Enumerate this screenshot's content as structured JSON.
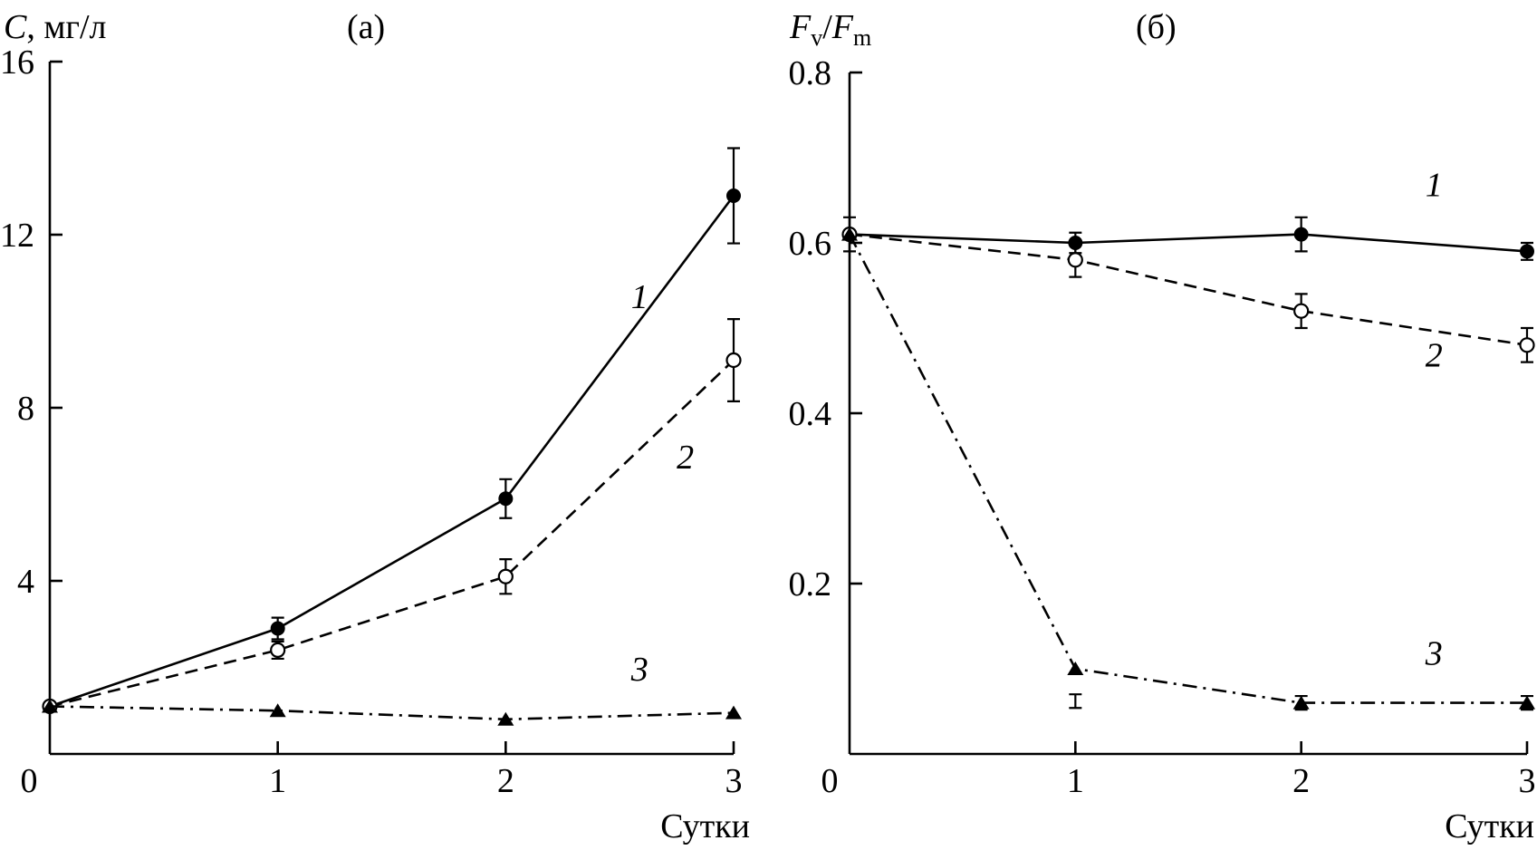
{
  "chart_data": [
    {
      "type": "line",
      "title": "(а)",
      "ylabel_var": "C",
      "ylabel_unit": ", мг/л",
      "xlabel": "Сутки",
      "x": [
        0,
        1,
        2,
        3
      ],
      "x_ticks": [
        "0",
        "1",
        "2",
        "3"
      ],
      "ylim": [
        0,
        16
      ],
      "y_ticks": [
        4,
        8,
        12,
        16
      ],
      "y_tick_labels": [
        "4",
        "8",
        "12",
        "16"
      ],
      "series": [
        {
          "name": "1",
          "style": "solid",
          "marker": "filled-circle",
          "values": [
            1.1,
            2.9,
            5.9,
            12.9
          ],
          "err": [
            null,
            0.25,
            0.45,
            1.1
          ]
        },
        {
          "name": "2",
          "style": "dashed",
          "marker": "open-circle",
          "values": [
            1.1,
            2.4,
            4.1,
            9.1
          ],
          "err": [
            null,
            0.2,
            0.4,
            0.95
          ]
        },
        {
          "name": "3",
          "style": "dashdot",
          "marker": "filled-triangle",
          "values": [
            1.1,
            1.0,
            0.8,
            0.95
          ],
          "err": [
            null,
            null,
            null,
            null
          ]
        }
      ],
      "curve_labels": [
        {
          "text": "1",
          "x": 2.55,
          "y": 10.3
        },
        {
          "text": "2",
          "x": 2.75,
          "y": 6.6
        },
        {
          "text": "3",
          "x": 2.55,
          "y": 1.7
        }
      ]
    },
    {
      "type": "line",
      "title": "(б)",
      "ylabel_main": "F",
      "ylabel_sub1": "v",
      "ylabel_sep": "/",
      "ylabel_main2": "F",
      "ylabel_sub2": "m",
      "xlabel": "Сутки",
      "x": [
        0,
        1,
        2,
        3
      ],
      "x_ticks": [
        "0",
        "1",
        "2",
        "3"
      ],
      "ylim": [
        0,
        0.8
      ],
      "y_ticks": [
        0.2,
        0.4,
        0.6,
        0.8
      ],
      "y_tick_labels": [
        "0.2",
        "0.4",
        "0.6",
        "0.8"
      ],
      "series": [
        {
          "name": "1",
          "style": "solid",
          "marker": "filled-circle",
          "values": [
            0.61,
            0.6,
            0.61,
            0.59
          ],
          "err": [
            0.02,
            0.012,
            0.02,
            0.01
          ]
        },
        {
          "name": "2",
          "style": "dashed",
          "marker": "open-circle",
          "values": [
            0.61,
            0.58,
            0.52,
            0.48
          ],
          "err": [
            null,
            0.02,
            0.02,
            0.02
          ]
        },
        {
          "name": "3",
          "style": "dashdot",
          "marker": "filled-triangle",
          "values": [
            0.61,
            0.1,
            0.06,
            0.06
          ],
          "err": [
            null,
            null,
            0.008,
            0.008
          ]
        }
      ],
      "curve_labels": [
        {
          "text": "1",
          "x": 2.55,
          "y": 0.655
        },
        {
          "text": "2",
          "x": 2.55,
          "y": 0.455
        },
        {
          "text": "3",
          "x": 2.55,
          "y": 0.105
        }
      ],
      "extra_error_bar": {
        "x": 1.0,
        "y": 0.062,
        "err": 0.008
      }
    }
  ]
}
